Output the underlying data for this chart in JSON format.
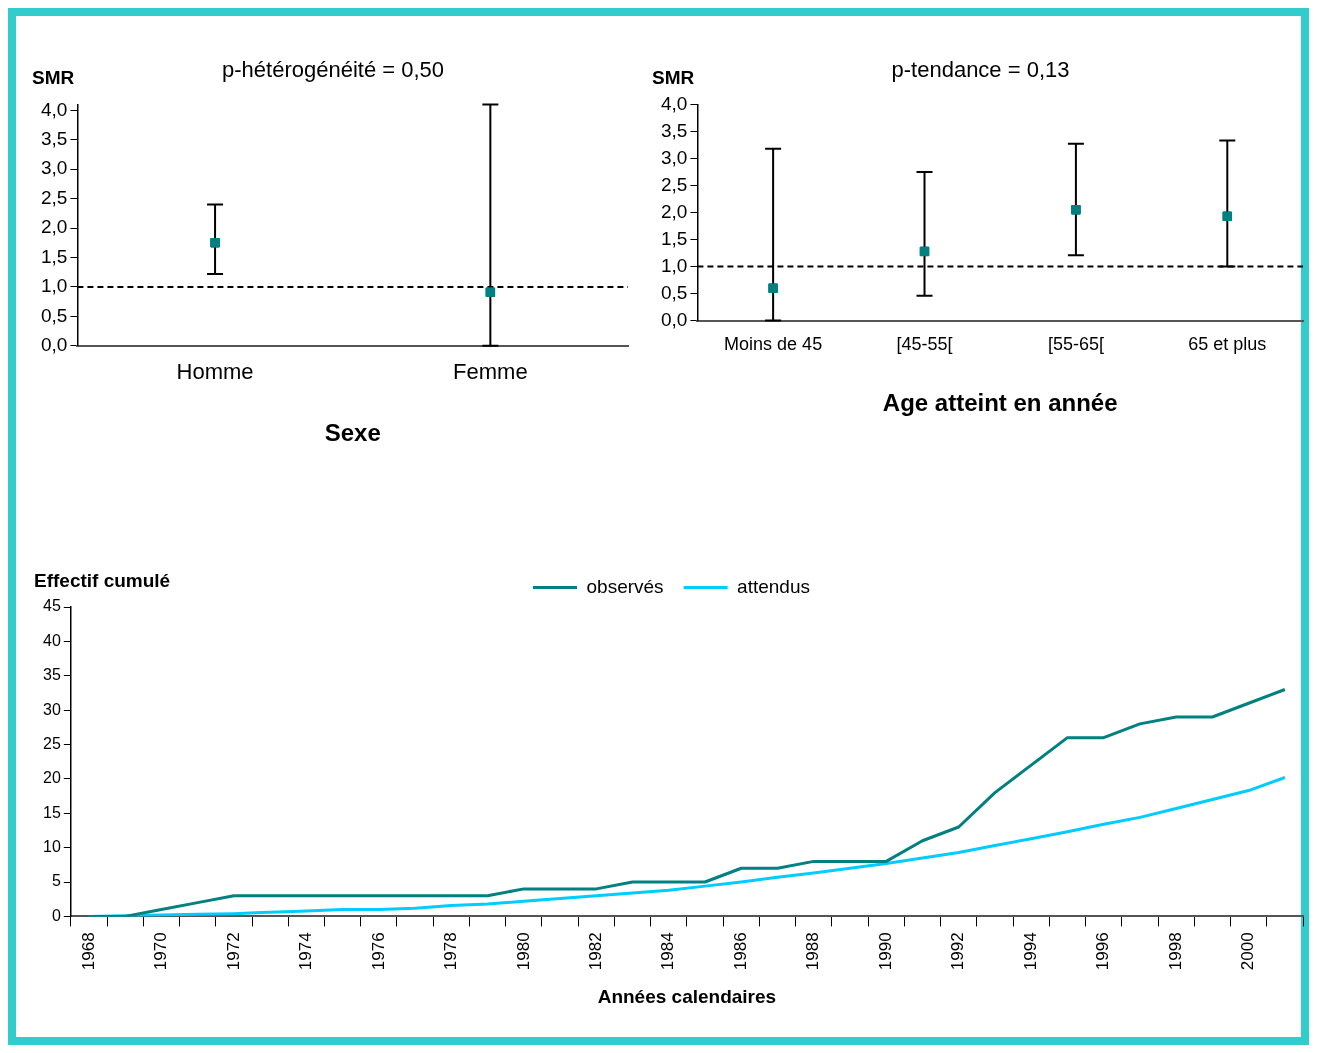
{
  "chart_data": [
    {
      "type": "scatter",
      "title": "p-hétérogénéité = 0,50",
      "ylabel": "SMR",
      "xlabel": "Sexe",
      "categories": [
        "Homme",
        "Femme"
      ],
      "series": [
        {
          "color": "#008080",
          "values": [
            1.75,
            0.91
          ],
          "errors": [
            [
              1.22,
              2.4
            ],
            [
              0,
              4.1
            ]
          ]
        }
      ],
      "marker": "square",
      "ylim": [
        0,
        4.1
      ],
      "yticks": [
        {
          "value": 0,
          "label": "0,0"
        },
        {
          "value": 0.5,
          "label": "0,5"
        },
        {
          "value": 1,
          "label": "1,0"
        },
        {
          "value": 1.5,
          "label": "1,5"
        },
        {
          "value": 2,
          "label": "2,0"
        },
        {
          "value": 2.5,
          "label": "2,5"
        },
        {
          "value": 3,
          "label": "3,0"
        },
        {
          "value": 3.5,
          "label": "3,5"
        },
        {
          "value": 4,
          "label": "4,0"
        }
      ],
      "ref_lines": [
        {
          "axis": "y",
          "value": 1,
          "line_style": "dashed",
          "color": "#000000"
        }
      ]
    },
    {
      "type": "scatter",
      "title": "p-tendance = 0,13",
      "ylabel": "SMR",
      "xlabel": "Age atteint en année",
      "categories": [
        "Moins de 45",
        "[45-55[",
        "[55-65[",
        "65 et plus"
      ],
      "series": [
        {
          "color": "#008080",
          "values": [
            0.6,
            1.28,
            2.05,
            1.93
          ],
          "errors": [
            [
              0,
              3.18
            ],
            [
              0.46,
              2.75
            ],
            [
              1.21,
              3.27
            ],
            [
              1.0,
              3.33
            ]
          ]
        }
      ],
      "marker": "square",
      "ylim": [
        0,
        4
      ],
      "yticks": [
        {
          "value": 0,
          "label": "0,0"
        },
        {
          "value": 0.5,
          "label": "0,5"
        },
        {
          "value": 1,
          "label": "1,0"
        },
        {
          "value": 1.5,
          "label": "1,5"
        },
        {
          "value": 2,
          "label": "2,0"
        },
        {
          "value": 2.5,
          "label": "2,5"
        },
        {
          "value": 3,
          "label": "3,0"
        },
        {
          "value": 3.5,
          "label": "3,5"
        },
        {
          "value": 4,
          "label": "4,0"
        }
      ],
      "ref_lines": [
        {
          "axis": "y",
          "value": 1,
          "line_style": "dashed",
          "color": "#000000"
        }
      ]
    },
    {
      "type": "line",
      "ylabel": "Effectif cumulé",
      "xlabel": "Années calendaires",
      "legend": "top",
      "marker": "none",
      "categories": [
        "1968",
        null,
        "1970",
        null,
        "1972",
        null,
        "1974",
        null,
        "1976",
        null,
        "1978",
        null,
        "1980",
        null,
        "1982",
        null,
        "1984",
        null,
        "1986",
        null,
        "1988",
        null,
        "1990",
        null,
        "1992",
        null,
        "1994",
        null,
        "1996",
        null,
        "1998",
        null,
        "2000",
        null
      ],
      "series": [
        {
          "name": "observés",
          "color": "#008080",
          "values": [
            0,
            0,
            1,
            2,
            3,
            3,
            3,
            3,
            3,
            3,
            3,
            3,
            4,
            4,
            4,
            5,
            5,
            5,
            7,
            7,
            8,
            8,
            8,
            11,
            13,
            18,
            22,
            26,
            26,
            28,
            29,
            29,
            31,
            33
          ]
        },
        {
          "name": "attendus",
          "color": "#00ccff",
          "values": [
            0,
            0.1,
            0.2,
            0.3,
            0.4,
            0.6,
            0.8,
            1.0,
            1.0,
            1.2,
            1.6,
            1.8,
            2.2,
            2.6,
            3.0,
            3.4,
            3.8,
            4.4,
            5.0,
            5.7,
            6.3,
            7.0,
            7.7,
            8.5,
            9.3,
            10.3,
            11.3,
            12.3,
            13.4,
            14.4,
            15.7,
            17.0,
            18.3,
            20.2
          ]
        }
      ],
      "ylim": [
        0,
        45
      ],
      "yticks": [
        0,
        5,
        10,
        15,
        20,
        25,
        30,
        35,
        40,
        45
      ]
    }
  ]
}
